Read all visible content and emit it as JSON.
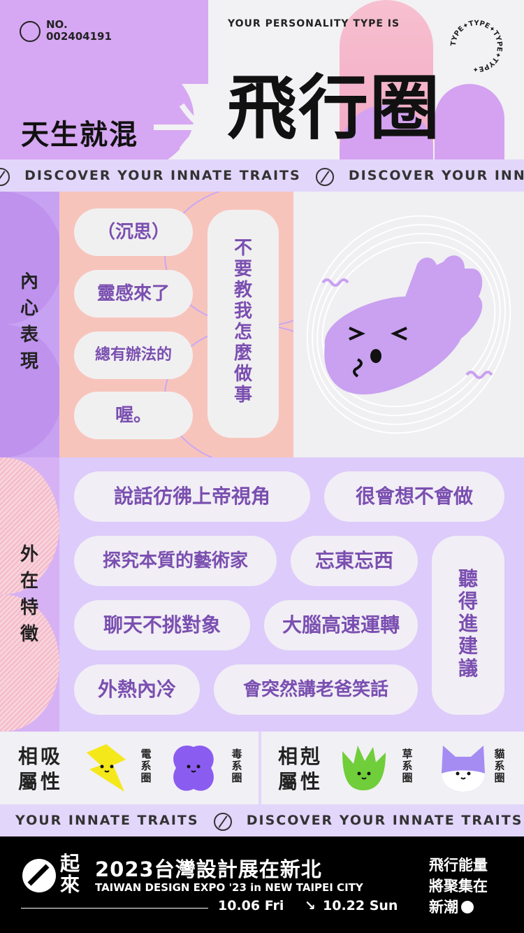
{
  "header": {
    "no_label": "NO.",
    "no_value": "002404191",
    "tagline": "天生就混",
    "type_label": "YOUR PERSONALITY TYPE IS",
    "type_name": "飛行圈",
    "stamp_text": "TYPE✦TYPE✦TYPE✦TYPE✦"
  },
  "marquee_top": {
    "text": "DISCOVER YOUR INNATE TRAITS",
    "text2": "DISCOVER YOUR INNA"
  },
  "inner": {
    "label": [
      "內",
      "心",
      "表",
      "現"
    ],
    "pills": [
      "（沉思）",
      "靈感來了",
      "總有辦法的",
      "喔。"
    ],
    "vertical_pill": [
      "不",
      "要",
      "教",
      "我",
      "怎",
      "麼",
      "做",
      "事"
    ]
  },
  "outer": {
    "label": [
      "外",
      "在",
      "特",
      "徵"
    ],
    "pills": [
      "說話彷彿上帝視角",
      "很會想不會做",
      "探究本質的藝術家",
      "忘東忘西",
      "聊天不挑對象",
      "大腦高速運轉",
      "外熱內冷",
      "會突然講老爸笑話"
    ],
    "vertical_pill": [
      "聽",
      "得",
      "進",
      "建",
      "議"
    ]
  },
  "attributes": {
    "attract_title": [
      "相吸",
      "屬性"
    ],
    "attract_items": [
      {
        "name": [
          "電",
          "系",
          "圈"
        ],
        "color": "#f4e81a"
      },
      {
        "name": [
          "毒",
          "系",
          "圈"
        ],
        "color": "#8a5cf0"
      }
    ],
    "repel_title": [
      "相剋",
      "屬性"
    ],
    "repel_items": [
      {
        "name": [
          "草",
          "系",
          "圈"
        ],
        "color": "#6fce3a"
      },
      {
        "name": [
          "貓",
          "系",
          "圈"
        ],
        "color": "#a58cf2"
      }
    ]
  },
  "marquee_bottom": {
    "text1": "YOUR INNATE TRAITS",
    "text2": "DISCOVER YOUR INNATE TRAITS"
  },
  "footer": {
    "logo_text": [
      "起",
      "來"
    ],
    "title_cn": "2023台灣設計展在新北",
    "title_en": "TAIWAN DESIGN EXPO '23 in NEW TAIPEI CITY",
    "date_start": "10.06 Fri",
    "date_arrow": "↘",
    "date_end": "10.22 Sun",
    "slogan": [
      "飛行能量",
      "將聚集在",
      "新潮"
    ]
  },
  "colors": {
    "violet": "#d6a7f2",
    "pink": "#f7c4bc",
    "lavender": "#ddcbfb",
    "text_purple": "#7a4fb0"
  }
}
